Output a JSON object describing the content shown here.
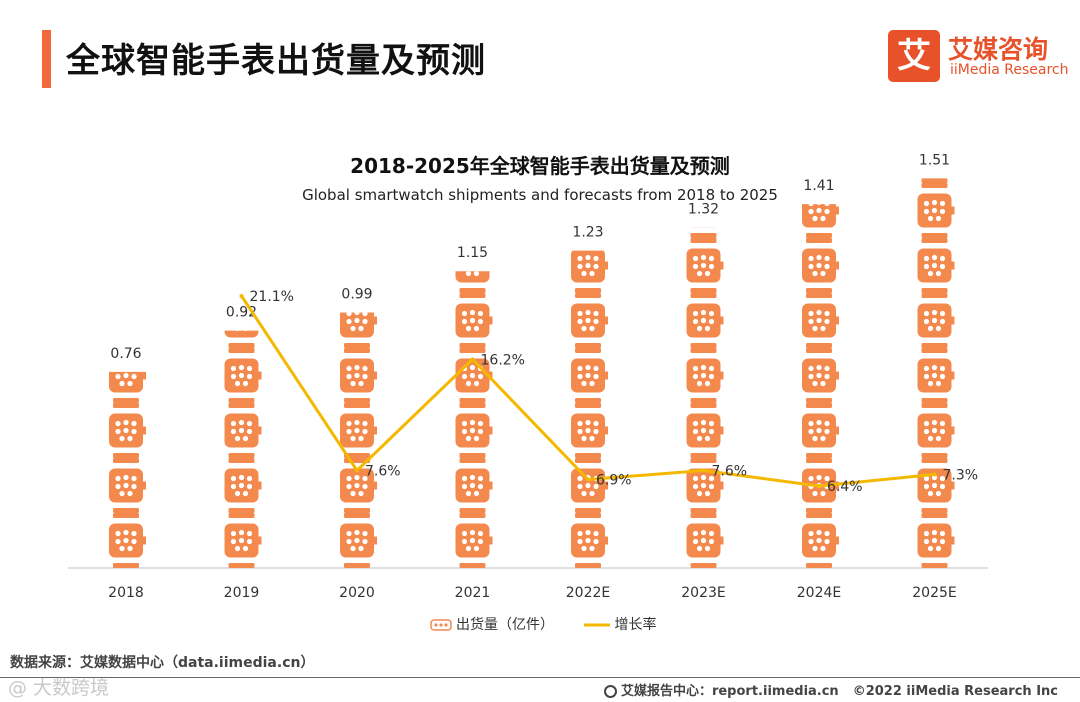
{
  "header": {
    "title": "全球智能手表出货量及预测"
  },
  "logo": {
    "mark": "艾",
    "name_cn": "艾媒咨询",
    "name_en": "iiMedia Research"
  },
  "chart_data": {
    "type": "bar",
    "title": "2018-2025年全球智能手表出货量及预测",
    "subtitle": "Global smartwatch shipments and forecasts from 2018 to 2025",
    "categories": [
      "2018",
      "2019",
      "2020",
      "2021",
      "2022E",
      "2023E",
      "2024E",
      "2025E"
    ],
    "series": [
      {
        "name": "出货量（亿件）",
        "type": "bar",
        "color": "#f4894e",
        "values": [
          0.76,
          0.92,
          0.99,
          1.15,
          1.23,
          1.32,
          1.41,
          1.51
        ],
        "labels": [
          "0.76",
          "0.92",
          "0.99",
          "1.15",
          "1.23",
          "1.32",
          "1.41",
          "1.51"
        ]
      },
      {
        "name": "增长率",
        "type": "line",
        "color": "#f5b800",
        "values": [
          null,
          21.1,
          7.6,
          16.2,
          6.9,
          7.6,
          6.4,
          7.3
        ],
        "labels": [
          "",
          "21.1%",
          "7.6%",
          "16.2%",
          "6.9%",
          "7.6%",
          "6.4%",
          "7.3%"
        ]
      }
    ],
    "ylim": [
      0,
      1.6
    ],
    "grid": false,
    "legend": "bottom-center"
  },
  "footer": {
    "source": "数据来源：艾媒数据中心（data.iimedia.cn）",
    "report_center": "艾媒报告中心：report.iimedia.cn",
    "copyright": "©2022 iiMedia Research Inc",
    "watermark": "@ 大数跨境"
  },
  "colors": {
    "accent": "#f26a3a",
    "brand": "#e8522a",
    "bar": "#f4894e",
    "line": "#f5b800"
  }
}
